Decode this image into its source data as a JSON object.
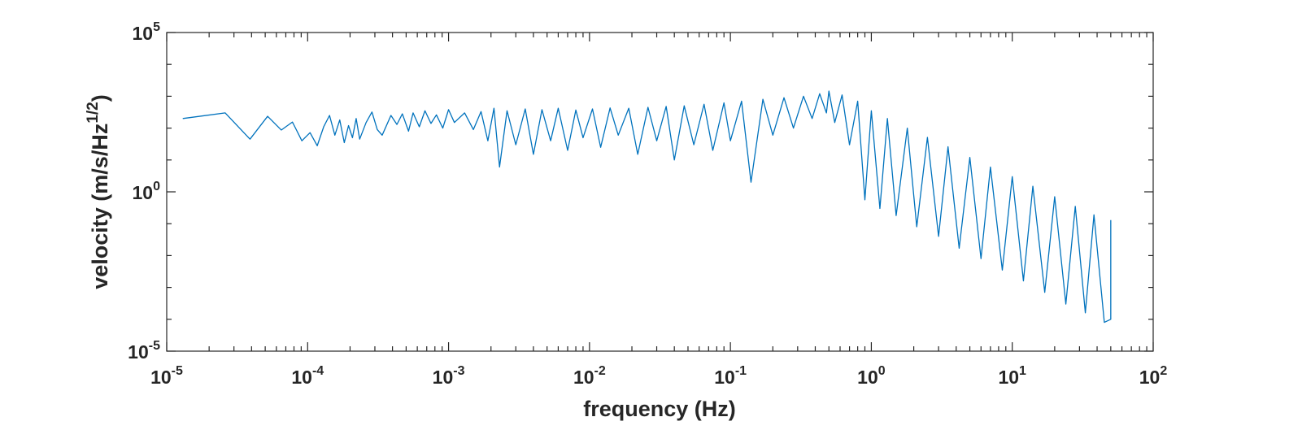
{
  "chart_data": {
    "type": "line",
    "xlabel": "frequency (Hz)",
    "ylabel": [
      "velocity (m/s/Hz",
      "1/2",
      ")"
    ],
    "xscale": "log",
    "yscale": "log",
    "xlim": [
      1e-05,
      100
    ],
    "ylim": [
      1e-05,
      100000
    ],
    "xticks": [
      {
        "value": 1e-05,
        "label": [
          "10",
          "-5"
        ]
      },
      {
        "value": 0.0001,
        "label": [
          "10",
          "-4"
        ]
      },
      {
        "value": 0.001,
        "label": [
          "10",
          "-3"
        ]
      },
      {
        "value": 0.01,
        "label": [
          "10",
          "-2"
        ]
      },
      {
        "value": 0.1,
        "label": [
          "10",
          "-1"
        ]
      },
      {
        "value": 1,
        "label": [
          "10",
          "0"
        ]
      },
      {
        "value": 10,
        "label": [
          "10",
          "1"
        ]
      },
      {
        "value": 100,
        "label": [
          "10",
          "2"
        ]
      }
    ],
    "xminorticks": [
      2e-05,
      3e-05,
      4e-05,
      5e-05,
      6e-05,
      7e-05,
      8e-05,
      9e-05,
      0.0002,
      0.0003,
      0.0004,
      0.0005,
      0.0006,
      0.0007,
      0.0008,
      0.0009,
      0.002,
      0.003,
      0.004,
      0.005,
      0.006,
      0.007,
      0.008,
      0.009,
      0.02,
      0.03,
      0.04,
      0.05,
      0.06,
      0.07,
      0.08,
      0.09,
      0.2,
      0.3,
      0.4,
      0.5,
      0.6,
      0.7,
      0.8,
      0.9,
      2,
      3,
      4,
      5,
      6,
      7,
      8,
      9,
      20,
      30,
      40,
      50,
      60,
      70,
      80,
      90
    ],
    "yticks": [
      {
        "value": 1e-05,
        "label": [
          "10",
          "-5"
        ]
      },
      {
        "value": 1,
        "label": [
          "10",
          "0"
        ]
      },
      {
        "value": 100000,
        "label": [
          "10",
          "5"
        ]
      }
    ],
    "yminorticks": [
      0.0001,
      0.001,
      0.01,
      0.1,
      10,
      100,
      1000,
      10000
    ],
    "grid": false,
    "x": [
      1.3e-05,
      2.6e-05,
      3.9e-05,
      5.2e-05,
      6.5e-05,
      7.8e-05,
      9.1e-05,
      0.000104,
      0.000117,
      0.00013,
      0.000143,
      0.000156,
      0.000169,
      0.000182,
      0.000195,
      0.000208,
      0.000221,
      0.000234,
      0.00026,
      0.000286,
      0.000312,
      0.000338,
      0.00039,
      0.00043,
      0.00047,
      0.00052,
      0.00056,
      0.00062,
      0.00068,
      0.00075,
      0.00082,
      0.00091,
      0.001,
      0.0011,
      0.0013,
      0.0015,
      0.0017,
      0.0019,
      0.0021,
      0.0023,
      0.0026,
      0.003,
      0.0035,
      0.004,
      0.0046,
      0.0053,
      0.006,
      0.007,
      0.008,
      0.009,
      0.0105,
      0.012,
      0.014,
      0.016,
      0.019,
      0.022,
      0.026,
      0.03,
      0.035,
      0.04,
      0.047,
      0.055,
      0.065,
      0.075,
      0.09,
      0.1,
      0.12,
      0.14,
      0.17,
      0.2,
      0.24,
      0.28,
      0.33,
      0.38,
      0.43,
      0.48,
      0.5,
      0.55,
      0.62,
      0.7,
      0.8,
      0.9,
      1,
      1.15,
      1.3,
      1.5,
      1.8,
      2.1,
      2.5,
      3,
      3.5,
      4.2,
      5,
      6,
      7,
      8.5,
      10,
      12,
      14,
      17,
      20,
      24,
      28,
      33,
      38,
      45,
      50,
      50
    ],
    "series": [
      {
        "name": "velocity",
        "color": "#0072bd",
        "values": [
          200,
          300,
          45,
          235,
          87,
          155,
          40,
          72,
          28,
          110,
          250,
          60,
          180,
          35,
          120,
          50,
          200,
          45,
          150,
          320,
          90,
          60,
          250,
          130,
          280,
          80,
          300,
          110,
          350,
          140,
          260,
          100,
          380,
          150,
          300,
          90,
          330,
          40,
          420,
          6,
          350,
          30,
          400,
          15,
          380,
          40,
          420,
          20,
          370,
          50,
          400,
          25,
          430,
          60,
          420,
          15,
          450,
          40,
          480,
          10,
          500,
          30,
          560,
          20,
          620,
          40,
          700,
          2,
          800,
          60,
          900,
          100,
          1000,
          200,
          1200,
          300,
          1450,
          150,
          1100,
          30,
          700,
          0.56,
          350,
          0.3,
          200,
          0.18,
          100,
          0.08,
          51,
          0.04,
          26,
          0.017,
          12,
          0.008,
          6,
          0.0035,
          3,
          0.0016,
          1.5,
          0.0007,
          0.7,
          0.0003,
          0.35,
          0.00016,
          0.19,
          8e-05,
          0.0001,
          0.13
        ]
      }
    ]
  }
}
